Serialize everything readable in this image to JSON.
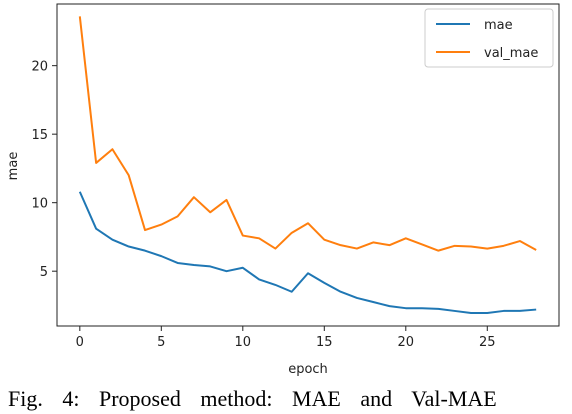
{
  "chart_data": {
    "type": "line",
    "title": "",
    "xlabel": "epoch",
    "ylabel": "mae",
    "xlim": [
      -1.4,
      29.4
    ],
    "ylim": [
      1.0,
      24.5
    ],
    "xticks": [
      0,
      5,
      10,
      15,
      20,
      25
    ],
    "yticks": [
      5,
      10,
      15,
      20
    ],
    "grid": false,
    "legend_position": "top-right",
    "x": [
      0,
      1,
      2,
      3,
      4,
      5,
      6,
      7,
      8,
      9,
      10,
      11,
      12,
      13,
      14,
      15,
      16,
      17,
      18,
      19,
      20,
      21,
      22,
      23,
      24,
      25,
      26,
      27,
      28
    ],
    "series": [
      {
        "name": "mae",
        "color": "#1f77b4",
        "values": [
          10.8,
          8.1,
          7.3,
          6.8,
          6.5,
          6.1,
          5.6,
          5.45,
          5.35,
          5.0,
          5.25,
          4.4,
          4.0,
          3.5,
          4.85,
          4.15,
          3.5,
          3.05,
          2.75,
          2.45,
          2.3,
          2.3,
          2.25,
          2.1,
          1.95,
          1.95,
          2.1,
          2.1,
          2.2
        ]
      },
      {
        "name": "val_mae",
        "color": "#ff7f0e",
        "values": [
          23.6,
          12.9,
          13.9,
          12.0,
          8.0,
          8.4,
          9.0,
          10.4,
          9.3,
          10.2,
          7.6,
          7.4,
          6.65,
          7.8,
          8.5,
          7.3,
          6.9,
          6.65,
          7.1,
          6.9,
          7.4,
          6.95,
          6.5,
          6.85,
          6.8,
          6.65,
          6.85,
          7.2,
          6.55
        ]
      }
    ]
  },
  "caption": "Fig. 4: Proposed method: MAE and Val-MAE"
}
